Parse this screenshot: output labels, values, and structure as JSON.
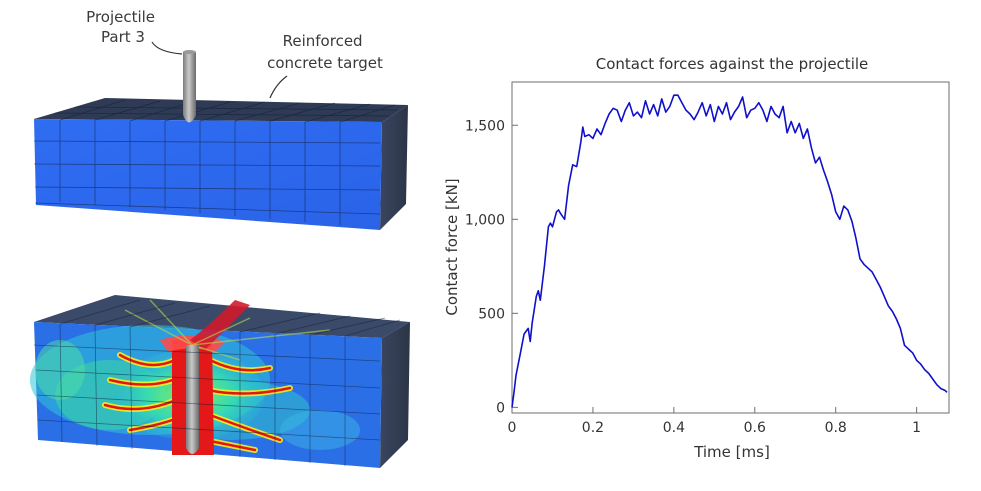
{
  "illustration": {
    "projectile_label": [
      "Projectile",
      "Part 3"
    ],
    "target_label": [
      "Reinforced",
      "concrete target"
    ]
  },
  "chart_data": {
    "type": "line",
    "title": "Contact forces against the projectile",
    "xlabel": "Time [ms]",
    "ylabel": "Contact force [kN]",
    "xlim": [
      0,
      1.08
    ],
    "ylim": [
      -30,
      1730
    ],
    "xticks": [
      0,
      0.2,
      0.4,
      0.6,
      0.8,
      1
    ],
    "xtick_labels": [
      "0",
      "0.2",
      "0.4",
      "0.6",
      "0.8",
      "1"
    ],
    "yticks": [
      0,
      500,
      1000,
      1500
    ],
    "ytick_labels": [
      "0",
      "500",
      "1,000",
      "1,500"
    ],
    "grid": false,
    "legend": "none",
    "line_color": "#1010cc",
    "series": [
      {
        "x": [
          0,
          0.005,
          0.01,
          0.02,
          0.03,
          0.04,
          0.045,
          0.05,
          0.06,
          0.065,
          0.07,
          0.08,
          0.09,
          0.095,
          0.1,
          0.11,
          0.115,
          0.12,
          0.13,
          0.14,
          0.15,
          0.16,
          0.17,
          0.175,
          0.18,
          0.19,
          0.2,
          0.21,
          0.22,
          0.23,
          0.24,
          0.25,
          0.26,
          0.27,
          0.28,
          0.29,
          0.3,
          0.31,
          0.32,
          0.33,
          0.34,
          0.35,
          0.36,
          0.37,
          0.38,
          0.39,
          0.4,
          0.41,
          0.42,
          0.43,
          0.44,
          0.45,
          0.46,
          0.47,
          0.48,
          0.49,
          0.5,
          0.51,
          0.52,
          0.53,
          0.54,
          0.55,
          0.56,
          0.57,
          0.58,
          0.59,
          0.6,
          0.61,
          0.62,
          0.63,
          0.64,
          0.65,
          0.66,
          0.67,
          0.68,
          0.69,
          0.7,
          0.71,
          0.72,
          0.73,
          0.74,
          0.75,
          0.76,
          0.77,
          0.78,
          0.79,
          0.8,
          0.81,
          0.82,
          0.83,
          0.84,
          0.85,
          0.86,
          0.87,
          0.88,
          0.89,
          0.9,
          0.91,
          0.92,
          0.93,
          0.94,
          0.95,
          0.96,
          0.97,
          0.98,
          0.99,
          1.0,
          1.01,
          1.02,
          1.03,
          1.04,
          1.05,
          1.06,
          1.07,
          1.075
        ],
        "y": [
          0,
          80,
          170,
          280,
          390,
          420,
          350,
          450,
          590,
          620,
          570,
          750,
          960,
          980,
          960,
          1040,
          1050,
          1030,
          1000,
          1180,
          1290,
          1280,
          1410,
          1490,
          1440,
          1450,
          1430,
          1480,
          1450,
          1510,
          1560,
          1590,
          1580,
          1520,
          1580,
          1620,
          1550,
          1570,
          1540,
          1630,
          1560,
          1610,
          1550,
          1640,
          1570,
          1600,
          1660,
          1660,
          1620,
          1580,
          1560,
          1530,
          1570,
          1620,
          1550,
          1610,
          1520,
          1600,
          1560,
          1620,
          1530,
          1570,
          1600,
          1650,
          1540,
          1580,
          1590,
          1620,
          1580,
          1520,
          1600,
          1560,
          1540,
          1600,
          1460,
          1520,
          1460,
          1510,
          1430,
          1480,
          1380,
          1300,
          1330,
          1260,
          1200,
          1130,
          1040,
          1000,
          1070,
          1050,
          990,
          900,
          790,
          760,
          740,
          720,
          680,
          640,
          590,
          540,
          510,
          470,
          420,
          330,
          310,
          290,
          250,
          230,
          200,
          180,
          150,
          120,
          100,
          90,
          80
        ]
      }
    ]
  }
}
